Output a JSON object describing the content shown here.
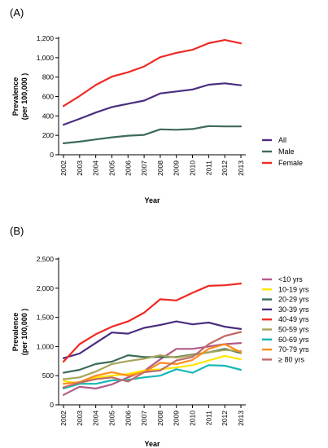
{
  "chart_data": [
    {
      "panel_label": "(A)",
      "type": "line",
      "xlabel": "Year",
      "ylabel": "Prevalence",
      "ylabel_unit": "(per 100,000 )",
      "ylim": [
        0,
        1200
      ],
      "yticks": [
        "0",
        "200",
        "400",
        "600",
        "800",
        "1,000",
        "1,200"
      ],
      "ytick_values": [
        0,
        200,
        400,
        600,
        800,
        1000,
        1200
      ],
      "x": [
        "2002",
        "2003",
        "2004",
        "2005",
        "2006",
        "2007",
        "2008",
        "2009",
        "2010",
        "2011",
        "2012",
        "2013"
      ],
      "grid": false,
      "legend_position": "right",
      "series": [
        {
          "name": "All",
          "color": "#4b2d7f",
          "values": [
            310,
            370,
            435,
            492,
            525,
            558,
            632,
            652,
            672,
            722,
            736,
            716
          ]
        },
        {
          "name": "Male",
          "color": "#3d6b57",
          "values": [
            118,
            135,
            158,
            180,
            196,
            205,
            262,
            258,
            265,
            295,
            292,
            292
          ]
        },
        {
          "name": "Female",
          "color": "#ee2a24",
          "values": [
            502,
            605,
            718,
            805,
            850,
            910,
            1005,
            1050,
            1082,
            1150,
            1182,
            1148
          ]
        }
      ]
    },
    {
      "panel_label": "(B)",
      "type": "line",
      "xlabel": "Year",
      "ylabel": "Prevalence",
      "ylabel_unit": "(per 100,000 )",
      "ylim": [
        0,
        2500
      ],
      "yticks": [
        "0",
        "500",
        "1,000",
        "1,500",
        "2,000",
        "2,500"
      ],
      "ytick_values": [
        0,
        500,
        1000,
        1500,
        2000,
        2500
      ],
      "x": [
        "2002",
        "2003",
        "2004",
        "2005",
        "2006",
        "2007",
        "2008",
        "2009",
        "2010",
        "2011",
        "2012",
        "2013"
      ],
      "grid": false,
      "legend_position": "right",
      "series": [
        {
          "name": "<10 yrs",
          "color": "#b35a88",
          "values": [
            170,
            310,
            280,
            350,
            470,
            580,
            780,
            960,
            960,
            1000,
            1040,
            1060
          ]
        },
        {
          "name": "10-19 yrs",
          "color": "#ffe600",
          "values": [
            410,
            360,
            470,
            500,
            530,
            590,
            610,
            640,
            680,
            760,
            840,
            780
          ]
        },
        {
          "name": "20-29 yrs",
          "color": "#3d6b57",
          "values": [
            550,
            600,
            700,
            740,
            850,
            820,
            820,
            820,
            860,
            900,
            960,
            890
          ]
        },
        {
          "name": "30-39 yrs",
          "color": "#4b2d7f",
          "values": [
            800,
            880,
            1060,
            1240,
            1220,
            1320,
            1370,
            1430,
            1380,
            1410,
            1340,
            1300
          ]
        },
        {
          "name": "40-49 yrs",
          "color": "#ee2a24",
          "values": [
            740,
            1040,
            1210,
            1340,
            1430,
            1580,
            1810,
            1790,
            1920,
            2040,
            2050,
            2080
          ]
        },
        {
          "name": "50-59 yrs",
          "color": "#a8a55a",
          "values": [
            440,
            470,
            570,
            700,
            750,
            790,
            850,
            810,
            850,
            900,
            940,
            920
          ]
        },
        {
          "name": "60-69 yrs",
          "color": "#19b6b6",
          "values": [
            280,
            360,
            360,
            420,
            430,
            470,
            500,
            610,
            550,
            680,
            670,
            600
          ]
        },
        {
          "name": "70-79 yrs",
          "color": "#ff8c1a",
          "values": [
            360,
            390,
            500,
            560,
            500,
            560,
            720,
            700,
            770,
            960,
            1040,
            900
          ]
        },
        {
          "name": "≥ 80 yrs",
          "color": "#c06a6a",
          "values": [
            300,
            380,
            440,
            470,
            400,
            560,
            590,
            760,
            820,
            1040,
            1180,
            1250
          ]
        }
      ]
    }
  ]
}
